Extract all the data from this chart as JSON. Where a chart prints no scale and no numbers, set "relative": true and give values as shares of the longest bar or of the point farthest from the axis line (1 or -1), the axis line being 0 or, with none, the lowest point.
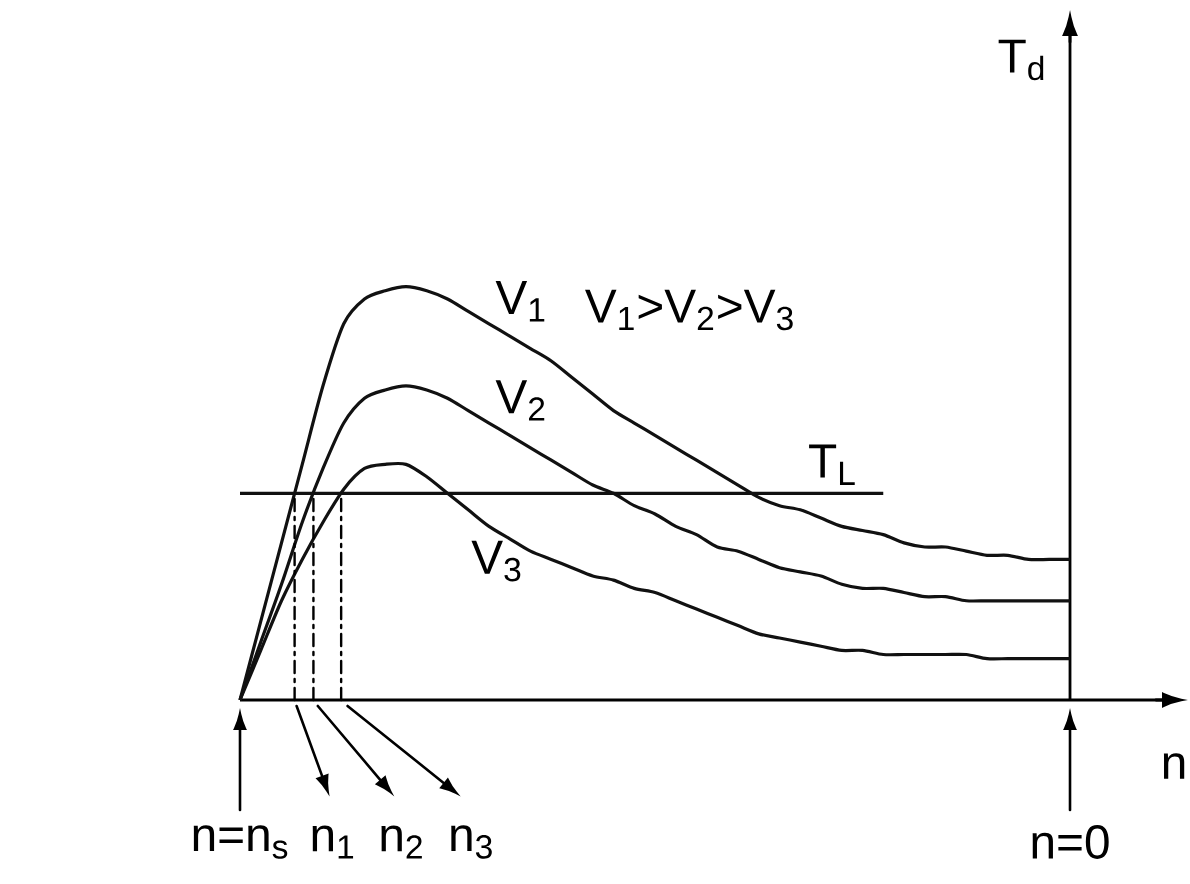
{
  "chart_data": {
    "type": "line",
    "relative": true,
    "xlabel": "n",
    "ylabel": "T$_{d}$",
    "categories": [
      "n=n$_{s}$",
      null,
      null,
      null,
      null,
      null,
      null,
      null,
      null,
      null,
      null,
      null,
      null,
      null,
      null,
      null,
      null,
      null,
      null,
      null,
      null,
      null,
      null,
      null,
      null,
      null,
      null,
      null,
      null,
      null,
      null,
      null,
      null,
      null,
      null,
      null,
      null,
      null,
      null,
      null,
      "n=0"
    ],
    "annotations": [
      "V$_{1}$>V$_{2}$>V$_{3}$",
      "n$_{1}$",
      "n$_{2}$",
      "n$_{3}$"
    ],
    "series": [
      {
        "name": "V$_{1}$",
        "color": "#111111",
        "values": [
          0,
          0.19,
          0.38,
          0.57,
          0.76,
          0.91,
          0.97,
          0.99,
          1,
          0.99,
          0.97,
          0.94,
          0.91,
          0.88,
          0.85,
          0.82,
          0.78,
          0.74,
          0.7,
          0.67,
          0.64,
          0.61,
          0.58,
          0.55,
          0.52,
          0.49,
          0.47,
          0.46,
          0.44,
          0.42,
          0.41,
          0.4,
          0.38,
          0.37,
          0.37,
          0.36,
          0.35,
          0.35,
          0.34,
          0.34,
          0.34
        ]
      },
      {
        "name": "V$_{2}$",
        "color": "#111111",
        "values": [
          0,
          0.14,
          0.28,
          0.43,
          0.56,
          0.67,
          0.73,
          0.75,
          0.76,
          0.75,
          0.73,
          0.7,
          0.67,
          0.64,
          0.61,
          0.58,
          0.55,
          0.52,
          0.5,
          0.47,
          0.45,
          0.42,
          0.4,
          0.37,
          0.36,
          0.34,
          0.32,
          0.31,
          0.3,
          0.28,
          0.27,
          0.27,
          0.26,
          0.25,
          0.25,
          0.24,
          0.24,
          0.24,
          0.24,
          0.24,
          0.24
        ]
      },
      {
        "name": "V$_{3}$",
        "color": "#111111",
        "values": [
          0,
          0.12,
          0.24,
          0.34,
          0.43,
          0.51,
          0.56,
          0.57,
          0.57,
          0.54,
          0.5,
          0.46,
          0.42,
          0.39,
          0.36,
          0.34,
          0.32,
          0.3,
          0.29,
          0.27,
          0.26,
          0.24,
          0.22,
          0.2,
          0.18,
          0.16,
          0.15,
          0.14,
          0.13,
          0.12,
          0.12,
          0.11,
          0.11,
          0.11,
          0.11,
          0.11,
          0.1,
          0.1,
          0.1,
          0.1,
          0.1
        ]
      },
      {
        "name": "T$_{L}$",
        "color": "#111111",
        "values": [
          0.5,
          0.5,
          0.5,
          0.5,
          0.5,
          0.5,
          0.5,
          0.5,
          0.5,
          0.5,
          0.5,
          0.5,
          0.5,
          0.5,
          0.5,
          0.5,
          0.5,
          0.5,
          0.5,
          0.5,
          0.5,
          0.5,
          0.5,
          0.5,
          0.5,
          0.5,
          0.5,
          0.5,
          0.5,
          0.5,
          0.5,
          0.5,
          null,
          null,
          null,
          null,
          null,
          null,
          null,
          null,
          null
        ]
      }
    ]
  }
}
